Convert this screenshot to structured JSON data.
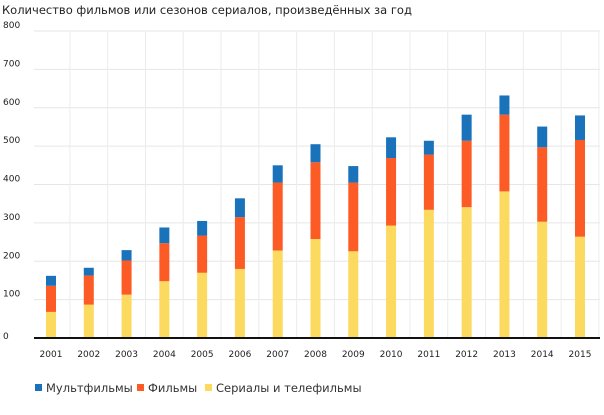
{
  "chart_data": {
    "type": "bar",
    "stacked": true,
    "title": "Количество фильмов или сезонов сериалов, произведённых за год",
    "xlabel": "",
    "ylabel": "",
    "ylim": [
      0,
      800
    ],
    "yticks": [
      0,
      100,
      200,
      300,
      400,
      500,
      600,
      700,
      800
    ],
    "grid": true,
    "legend_position": "bottom-left",
    "categories": [
      "2001",
      "2002",
      "2003",
      "2004",
      "2005",
      "2006",
      "2007",
      "2008",
      "2009",
      "2010",
      "2011",
      "2012",
      "2013",
      "2014",
      "2015"
    ],
    "series": [
      {
        "name": "Сериалы и телефильмы",
        "color": "#fcd95f",
        "values": [
          68,
          87,
          113,
          148,
          170,
          180,
          228,
          258,
          226,
          293,
          334,
          341,
          382,
          303,
          264
        ]
      },
      {
        "name": "Фильмы",
        "color": "#fd5b26",
        "values": [
          68,
          76,
          89,
          99,
          97,
          135,
          177,
          200,
          179,
          176,
          144,
          173,
          200,
          194,
          252
        ]
      },
      {
        "name": "Мультфильмы",
        "color": "#1a72bb",
        "values": [
          26,
          20,
          27,
          41,
          38,
          49,
          45,
          47,
          43,
          54,
          36,
          68,
          50,
          54,
          64
        ]
      }
    ],
    "legend_order": [
      2,
      1,
      0
    ]
  }
}
